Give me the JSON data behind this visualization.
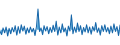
{
  "values": [
    -0.5,
    -1.2,
    0.3,
    -0.8,
    0.5,
    -1.5,
    0.2,
    -1.0,
    0.4,
    -0.6,
    0.8,
    -1.3,
    0.6,
    -0.9,
    1.0,
    -0.4,
    0.7,
    -1.1,
    0.3,
    -0.8,
    0.5,
    -0.6,
    0.2,
    -1.4,
    0.6,
    4.5,
    -0.5,
    0.3,
    -1.2,
    0.8,
    -0.4,
    0.6,
    -1.0,
    0.4,
    -0.7,
    0.9,
    -0.5,
    1.8,
    -1.3,
    0.5,
    -0.8,
    1.2,
    -0.6,
    0.3,
    -1.5,
    0.7,
    -0.4,
    3.2,
    -1.0,
    0.5,
    -0.7,
    1.4,
    -0.5,
    0.8,
    -1.2,
    0.4,
    -0.6,
    1.0,
    -0.8,
    0.5,
    -1.1,
    0.6,
    -0.4,
    1.5,
    -0.7,
    0.3,
    -1.3,
    0.8,
    -0.5,
    1.0,
    -0.6,
    0.4,
    -1.0,
    0.7,
    -0.8,
    1.2,
    -0.5,
    0.6,
    -1.4,
    0.9
  ],
  "line_color": "#1565a8",
  "fill_color": "#5aabdc",
  "background_color": "#ffffff",
  "baseline": 0.0,
  "ylim_min": -3.5,
  "ylim_max": 6.5
}
